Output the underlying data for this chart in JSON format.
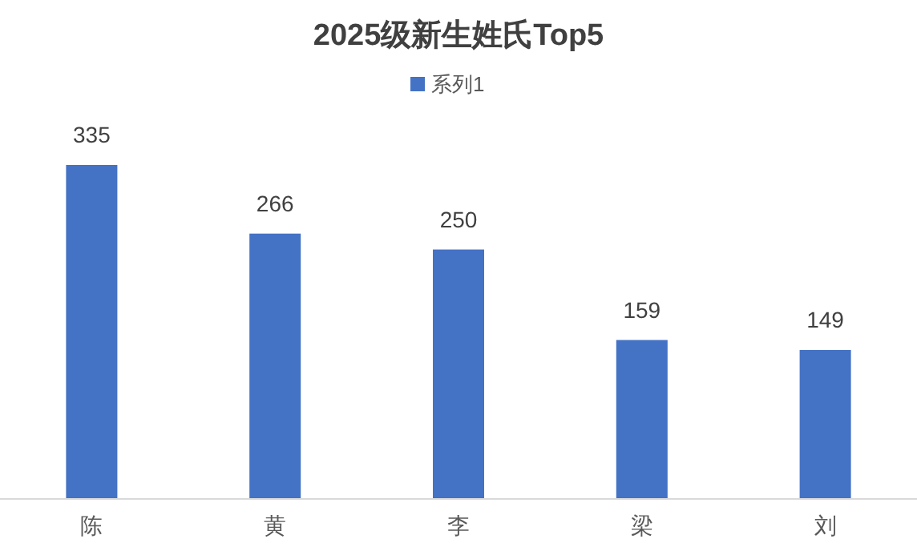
{
  "chart_data": {
    "type": "bar",
    "title": "2025级新生姓氏Top5",
    "categories": [
      "陈",
      "黄",
      "李",
      "梁",
      "刘"
    ],
    "series": [
      {
        "name": "系列1",
        "color": "#4472c4",
        "values": [
          335,
          266,
          250,
          159,
          149
        ]
      }
    ],
    "data_labels": true,
    "legend": "top",
    "grid": false
  }
}
